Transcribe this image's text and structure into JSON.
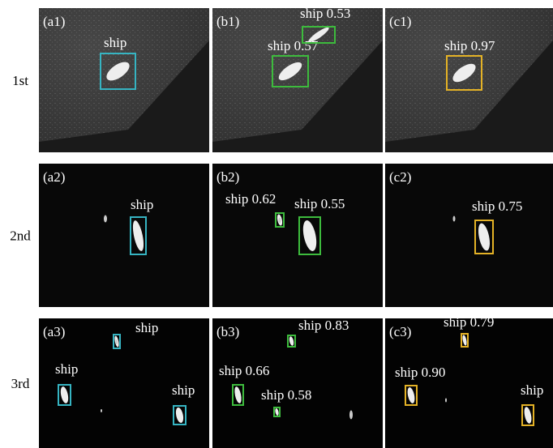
{
  "rows": [
    {
      "label": "1st",
      "panels": [
        {
          "tag": "(a1)",
          "detections": [
            "ship"
          ]
        },
        {
          "tag": "(b1)",
          "detections": [
            "ship 0.57",
            "ship 0.53"
          ]
        },
        {
          "tag": "(c1)",
          "detections": [
            "ship 0.97"
          ]
        }
      ]
    },
    {
      "label": "2nd",
      "panels": [
        {
          "tag": "(a2)",
          "detections": [
            "ship"
          ]
        },
        {
          "tag": "(b2)",
          "detections": [
            "ship 0.62",
            "ship 0.55"
          ]
        },
        {
          "tag": "(c2)",
          "detections": [
            "ship 0.75"
          ]
        }
      ]
    },
    {
      "label": "3rd",
      "panels": [
        {
          "tag": "(a3)",
          "detections": [
            "ship",
            "ship",
            "ship"
          ]
        },
        {
          "tag": "(b3)",
          "detections": [
            "ship 0.83",
            "ship 0.66",
            "ship 0.58"
          ]
        },
        {
          "tag": "(c3)",
          "detections": [
            "ship 0.79",
            "ship 0.90",
            "ship"
          ]
        }
      ]
    }
  ]
}
